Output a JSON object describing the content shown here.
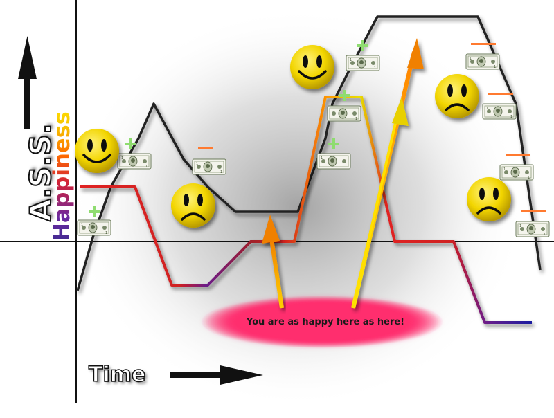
{
  "labels": {
    "y_axis_main": "A.S.S.",
    "y_axis_sub": "Happiness",
    "x_axis": "Time",
    "annotation": "You are as happy here as here!"
  },
  "colors": {
    "money_line": "#222222",
    "happiness_gradient": [
      "#e02020",
      "#5a1a8a",
      "#ff8c00",
      "#f0e000",
      "#1a1aa0"
    ],
    "bubble": "#ff2d6e",
    "smiley_face": "#f2d500",
    "plus_sign": "#8fdc70",
    "minus_sign": "#ff7a30"
  },
  "icons": [
    "smiley-face-icon",
    "frowny-face-icon",
    "dollar-bill-icon",
    "plus-icon",
    "minus-icon",
    "up-arrow-icon",
    "right-arrow-icon"
  ]
}
